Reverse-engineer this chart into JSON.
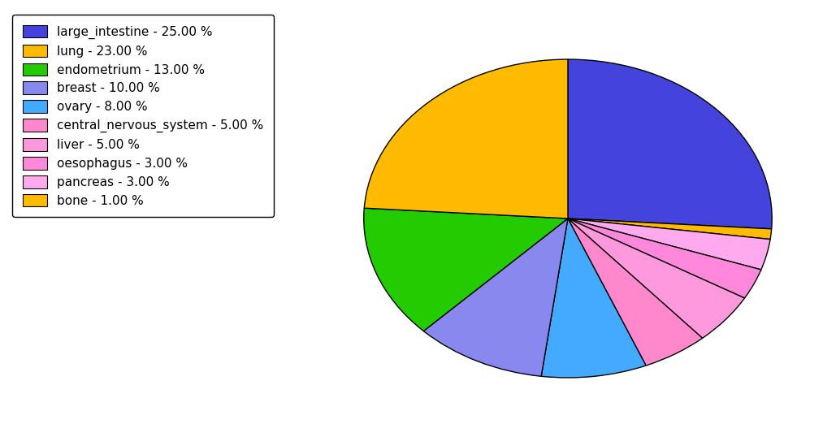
{
  "labels": [
    "large_intestine - 25.00 %",
    "lung - 23.00 %",
    "endometrium - 13.00 %",
    "breast - 10.00 %",
    "ovary - 8.00 %",
    "central_nervous_system - 5.00 %",
    "liver - 5.00 %",
    "oesophagus - 3.00 %",
    "pancreas - 3.00 %",
    "bone - 1.00 %"
  ],
  "values": [
    25,
    23,
    13,
    10,
    8,
    5,
    5,
    3,
    3,
    1
  ],
  "colors": [
    "#4444dd",
    "#ffbb00",
    "#22cc00",
    "#8888ee",
    "#44aaff",
    "#ff88cc",
    "#ff99dd",
    "#ff88dd",
    "#ffaaee",
    "#ffbb00"
  ],
  "pie_order": [
    0,
    9,
    8,
    7,
    6,
    5,
    4,
    3,
    2,
    1
  ],
  "figsize": [
    10.13,
    5.38
  ],
  "dpi": 100,
  "legend_fontsize": 11,
  "background_color": "#ffffff"
}
